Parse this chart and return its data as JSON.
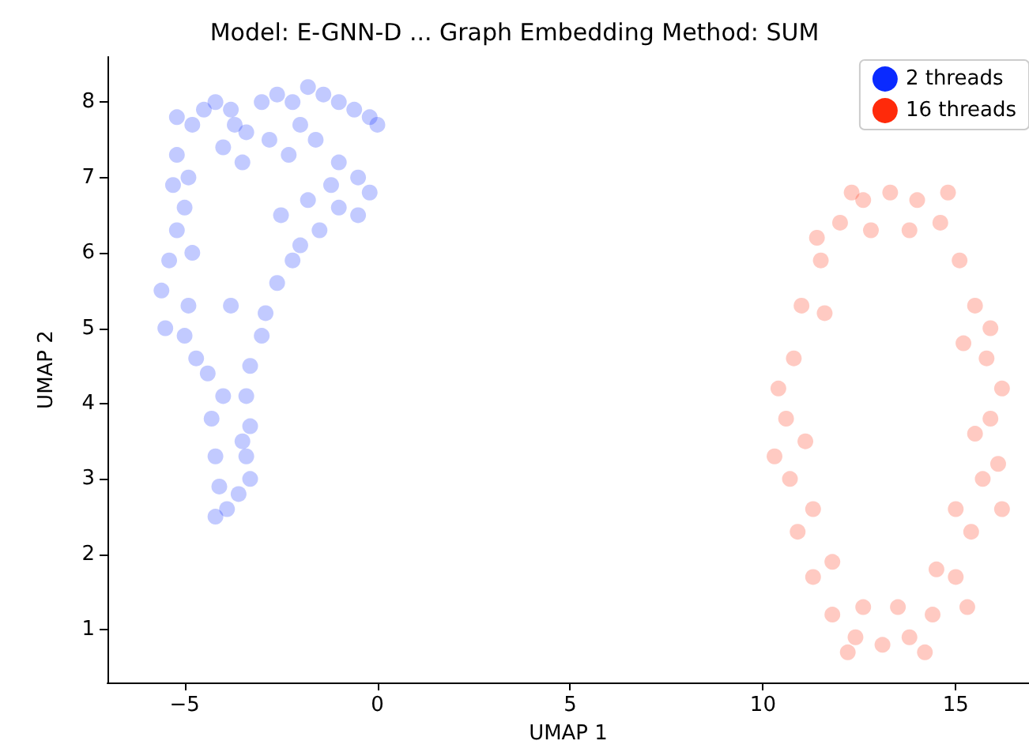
{
  "chart_data": {
    "type": "scatter",
    "title": "Model: E-GNN-D ... Graph Embedding Method: SUM",
    "xlabel": "UMAP 1",
    "ylabel": "UMAP 2",
    "xlim": [
      -7,
      16.9
    ],
    "ylim": [
      0.3,
      8.6
    ],
    "xticks": [
      -5,
      0,
      5,
      10,
      15
    ],
    "yticks": [
      1,
      2,
      3,
      4,
      5,
      6,
      7,
      8
    ],
    "grid": false,
    "legend": "top right",
    "marker": "circle",
    "series": [
      {
        "name": "2 threads",
        "color": "#0a2aff",
        "x": [
          -5.2,
          -4.8,
          -4.5,
          -4.2,
          -3.8,
          -3.4,
          -3.0,
          -2.6,
          -2.2,
          -1.8,
          -1.4,
          -1.0,
          -0.6,
          -0.2,
          0.0,
          -4.0,
          -3.5,
          -2.8,
          -2.3,
          -1.6,
          -1.0,
          -0.5,
          -0.2,
          -0.5,
          -1.0,
          -1.5,
          -2.0,
          -1.8,
          -2.5,
          -2.2,
          -2.6,
          -2.9,
          -3.0,
          -3.3,
          -3.4,
          -3.3,
          -3.4,
          -3.3,
          -3.6,
          -3.9,
          -4.2,
          -4.1,
          -4.2,
          -4.3,
          -4.0,
          -4.4,
          -4.7,
          -5.0,
          -5.5,
          -5.6,
          -5.4,
          -5.2,
          -5.0,
          -5.3,
          -5.2,
          -4.9,
          -4.8,
          -4.9,
          -3.7,
          -2.0,
          -1.2,
          -3.8,
          -3.5
        ],
        "values": [
          7.8,
          7.7,
          7.9,
          8.0,
          7.9,
          7.6,
          8.0,
          8.1,
          8.0,
          8.2,
          8.1,
          8.0,
          7.9,
          7.8,
          7.7,
          7.4,
          7.2,
          7.5,
          7.3,
          7.5,
          7.2,
          7.0,
          6.8,
          6.5,
          6.6,
          6.3,
          6.1,
          6.7,
          6.5,
          5.9,
          5.6,
          5.2,
          4.9,
          4.5,
          4.1,
          3.7,
          3.3,
          3.0,
          2.8,
          2.6,
          2.5,
          2.9,
          3.3,
          3.8,
          4.1,
          4.4,
          4.6,
          4.9,
          5.0,
          5.5,
          5.9,
          6.3,
          6.6,
          6.9,
          7.3,
          7.0,
          6.0,
          5.3,
          7.7,
          7.7,
          6.9,
          5.3,
          3.5
        ]
      },
      {
        "name": "16 threads",
        "color": "#ff2a0a",
        "x": [
          15.9,
          15.8,
          15.5,
          15.1,
          14.6,
          14.0,
          13.3,
          12.6,
          12.0,
          11.5,
          11.0,
          10.8,
          10.6,
          10.7,
          10.9,
          11.3,
          11.8,
          12.4,
          13.1,
          13.8,
          14.4,
          15.0,
          15.4,
          15.7,
          16.2,
          16.1,
          15.2,
          15.9,
          14.8,
          13.8,
          12.8,
          12.3,
          11.4,
          11.6,
          10.4,
          11.1,
          10.3,
          11.3,
          11.8,
          12.6,
          12.2,
          13.5,
          14.2,
          14.5,
          15.3,
          15.0,
          16.2,
          15.5
        ],
        "values": [
          3.8,
          4.6,
          5.3,
          5.9,
          6.4,
          6.7,
          6.8,
          6.7,
          6.4,
          5.9,
          5.3,
          4.6,
          3.8,
          3.0,
          2.3,
          1.7,
          1.2,
          0.9,
          0.8,
          0.9,
          1.2,
          1.7,
          2.3,
          3.0,
          4.2,
          3.2,
          4.8,
          5.0,
          6.8,
          6.3,
          6.3,
          6.8,
          6.2,
          5.2,
          4.2,
          3.5,
          3.3,
          2.6,
          1.9,
          1.3,
          0.7,
          1.3,
          0.7,
          1.8,
          1.3,
          2.6,
          2.6,
          3.6
        ]
      }
    ]
  }
}
